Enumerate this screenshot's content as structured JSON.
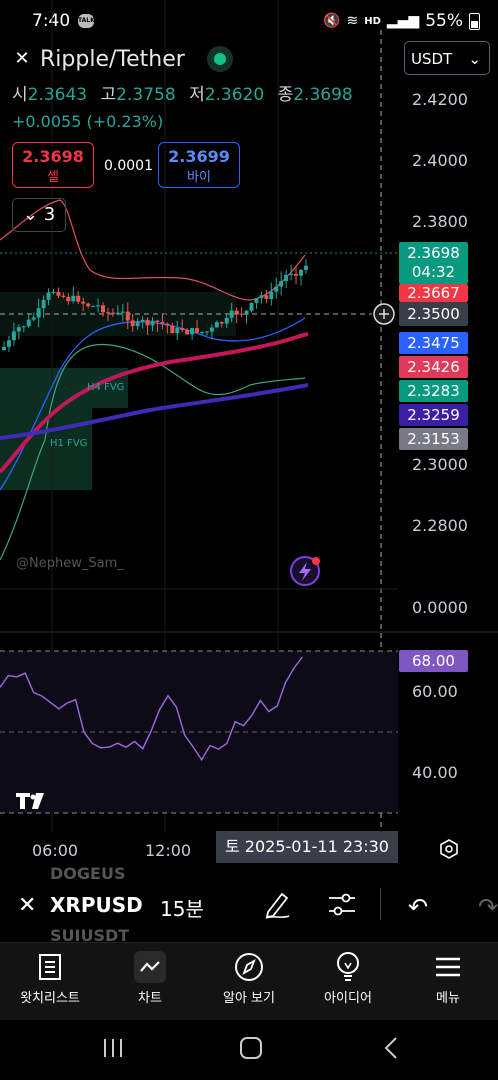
{
  "status": {
    "time": "7:40",
    "talk": "TALK",
    "battery": "55%",
    "hd": "HD"
  },
  "header": {
    "symbol_title": "Ripple/Tether",
    "open_label": "시",
    "open": "2.3643",
    "high_label": "고",
    "high": "2.3758",
    "low_label": "저",
    "low": "2.3620",
    "close_label": "종",
    "close": "2.3698",
    "change": "+0.0055 (+0.23%)",
    "sell_price": "2.3698",
    "sell_label": "셀",
    "spread": "0.0001",
    "buy_price": "2.3699",
    "buy_label": "바이",
    "indicator_count": "3",
    "currency": "USDT"
  },
  "chart": {
    "price_axis": [
      "2.4200",
      "2.4000",
      "2.3800",
      "2.3000",
      "2.2800",
      "0.0000"
    ],
    "rsi_axis": [
      "60.00",
      "40.00"
    ],
    "tags": [
      {
        "value": "2.3698",
        "sub": "04:32",
        "color": "#089981"
      },
      {
        "value": "2.3667",
        "color": "#f23645"
      },
      {
        "value": "2.3500",
        "color": "#3a3e48"
      },
      {
        "value": "2.3475",
        "color": "#2962ff"
      },
      {
        "value": "2.3426",
        "color": "#e03a5b"
      },
      {
        "value": "2.3283",
        "color": "#089981"
      },
      {
        "value": "2.3259",
        "color": "#3b1fa3"
      },
      {
        "value": "2.3153",
        "color": "#787b86"
      }
    ],
    "rsi_tag": "68.00",
    "fvg_labels": [
      "H4 FVG",
      "H1 FVG"
    ],
    "watermark": "@Nephew_Sam_",
    "time_labels": [
      "06:00",
      "12:00"
    ],
    "crosshair_time": "토 2025-01-11   23:30",
    "colors": {
      "up": "#26a69a",
      "down": "#ef5350",
      "rsi": "#9c6ade"
    }
  },
  "toolbar": {
    "symbol": "XRPUSD",
    "interval": "15분",
    "ghost_top": "DOGEUS",
    "ghost_bottom": "SUIUSDT"
  },
  "nav": [
    {
      "label": "왓치리스트",
      "icon": "watchlist-icon"
    },
    {
      "label": "차트",
      "icon": "chart-icon"
    },
    {
      "label": "알아 보기",
      "icon": "compass-icon"
    },
    {
      "label": "아이디어",
      "icon": "lightbulb-icon"
    },
    {
      "label": "메뉴",
      "icon": "menu-icon"
    }
  ]
}
